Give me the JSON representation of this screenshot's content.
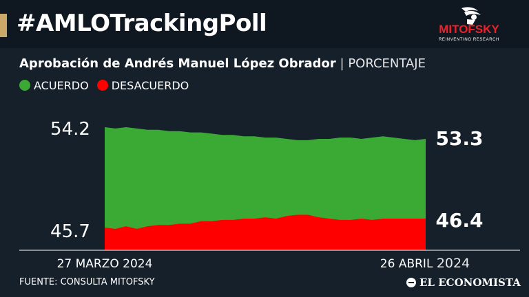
{
  "header": {
    "title": "#AMLOTrackingPoll",
    "logo_text": "MITOFSKY",
    "logo_tagline": "REINVENTING RESEARCH"
  },
  "subtitle": {
    "main": "Aprobación de Andrés Manuel López Obrador",
    "separator": "|",
    "unit": "PORCENTAJE"
  },
  "legend": [
    {
      "label": "ACUERDO",
      "color": "#3aaa35"
    },
    {
      "label": "DESACUERDO",
      "color": "#ff0000"
    }
  ],
  "footer": {
    "source": "FUENTE: CONSULTA MITOFSKY",
    "brand": "EL ECONOMISTA"
  },
  "colors": {
    "background": "#15202b",
    "header_bg": "#0f1720",
    "accent": "#c9a86a",
    "acuerdo": "#3aaa35",
    "desacuerdo": "#ff0000"
  },
  "chart_data": {
    "type": "area",
    "x_start_label": "27 MARZO 2024",
    "x_end_label_main": "26 ABRIL",
    "x_end_label_year": "2024",
    "y_ticks": [
      "54.2",
      "45.7"
    ],
    "series": [
      {
        "name": "ACUERDO",
        "color": "#3aaa35",
        "start_value": 54.2,
        "end_value": 53.3,
        "end_label": "53.3",
        "values": [
          54.2,
          54.1,
          54.2,
          54.1,
          54.0,
          54.0,
          53.9,
          53.9,
          53.8,
          53.8,
          53.7,
          53.6,
          53.6,
          53.5,
          53.5,
          53.4,
          53.4,
          53.3,
          53.2,
          53.2,
          53.3,
          53.3,
          53.4,
          53.4,
          53.3,
          53.4,
          53.5,
          53.4,
          53.3,
          53.2,
          53.3
        ]
      },
      {
        "name": "DESACUERDO",
        "color": "#ff0000",
        "start_value": 45.7,
        "end_value": 46.4,
        "end_label": "46.4",
        "values": [
          45.7,
          45.6,
          45.8,
          45.6,
          45.8,
          45.9,
          45.9,
          46.0,
          46.0,
          46.2,
          46.2,
          46.3,
          46.3,
          46.4,
          46.4,
          46.5,
          46.4,
          46.6,
          46.7,
          46.7,
          46.5,
          46.4,
          46.3,
          46.3,
          46.4,
          46.3,
          46.4,
          46.4,
          46.4,
          46.4,
          46.4
        ]
      }
    ]
  }
}
